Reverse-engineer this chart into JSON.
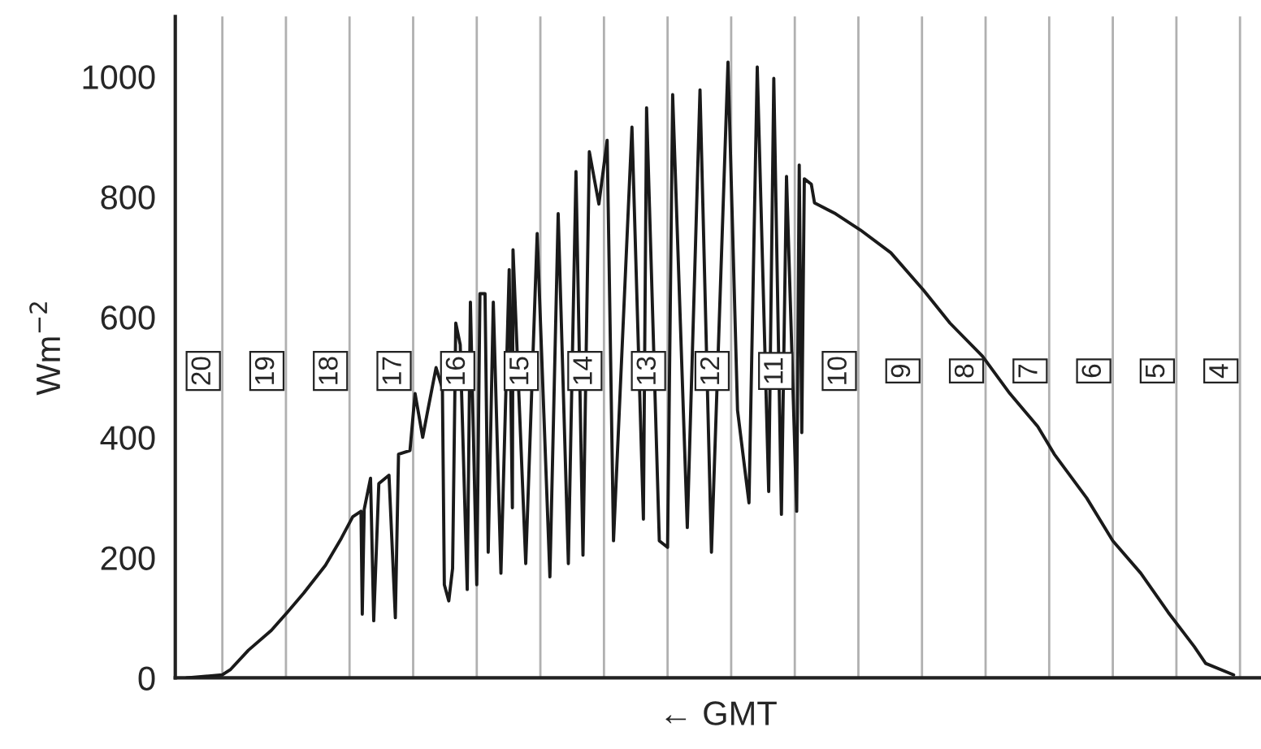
{
  "chart_data": {
    "type": "line",
    "xlabel": "← GMT",
    "ylabel": "Wm$^{−2}$",
    "xlim": [
      20.74,
      3.67
    ],
    "ylim": [
      0,
      1100
    ],
    "yticks": [
      0,
      200,
      400,
      600,
      800,
      1000
    ],
    "xticks": [
      {
        "value": 20.3,
        "label": "20"
      },
      {
        "value": 19.3,
        "label": "19"
      },
      {
        "value": 18.3,
        "label": "18"
      },
      {
        "value": 17.3,
        "label": "17"
      },
      {
        "value": 16.3,
        "label": "16"
      },
      {
        "value": 15.3,
        "label": "15"
      },
      {
        "value": 14.3,
        "label": "14"
      },
      {
        "value": 13.3,
        "label": "13"
      },
      {
        "value": 12.3,
        "label": "12"
      },
      {
        "value": 11.3,
        "label": "11"
      },
      {
        "value": 10.3,
        "label": "10"
      },
      {
        "value": 9.3,
        "label": "9"
      },
      {
        "value": 8.3,
        "label": "8"
      },
      {
        "value": 7.3,
        "label": "7"
      },
      {
        "value": 6.3,
        "label": "6"
      },
      {
        "value": 5.3,
        "label": "5"
      },
      {
        "value": 4.3,
        "label": "4"
      }
    ],
    "legend": false,
    "marker": "none",
    "line_style": "solid",
    "ref_lines": [
      {
        "axis": "x",
        "value": 20,
        "color": "#b0b0b0"
      },
      {
        "axis": "x",
        "value": 19,
        "color": "#b0b0b0"
      },
      {
        "axis": "x",
        "value": 18,
        "color": "#b0b0b0"
      },
      {
        "axis": "x",
        "value": 17,
        "color": "#b0b0b0"
      },
      {
        "axis": "x",
        "value": 16,
        "color": "#b0b0b0"
      },
      {
        "axis": "x",
        "value": 15,
        "color": "#b0b0b0"
      },
      {
        "axis": "x",
        "value": 14,
        "color": "#b0b0b0"
      },
      {
        "axis": "x",
        "value": 13,
        "color": "#b0b0b0"
      },
      {
        "axis": "x",
        "value": 12,
        "color": "#b0b0b0"
      },
      {
        "axis": "x",
        "value": 11,
        "color": "#b0b0b0"
      },
      {
        "axis": "x",
        "value": 10,
        "color": "#b0b0b0"
      },
      {
        "axis": "x",
        "value": 9,
        "color": "#b0b0b0"
      },
      {
        "axis": "x",
        "value": 8,
        "color": "#b0b0b0"
      },
      {
        "axis": "x",
        "value": 7,
        "color": "#b0b0b0"
      },
      {
        "axis": "x",
        "value": 6,
        "color": "#b0b0b0"
      },
      {
        "axis": "x",
        "value": 5,
        "color": "#b0b0b0"
      },
      {
        "axis": "x",
        "value": 4,
        "color": "#b0b0b0"
      }
    ],
    "series": [
      {
        "color": "#1a1a1a",
        "x": [
          20.56,
          20.0,
          19.87,
          19.59,
          19.23,
          18.97,
          18.72,
          18.38,
          18.13,
          17.95,
          17.82,
          17.8,
          17.77,
          17.67,
          17.62,
          17.54,
          17.38,
          17.28,
          17.23,
          17.05,
          16.97,
          16.85,
          16.77,
          16.64,
          16.54,
          16.51,
          16.44,
          16.38,
          16.33,
          16.26,
          16.15,
          16.1,
          16.0,
          15.95,
          15.87,
          15.82,
          15.74,
          15.62,
          15.49,
          15.44,
          15.43,
          15.23,
          15.05,
          14.85,
          14.72,
          14.56,
          14.44,
          14.33,
          14.23,
          14.08,
          13.95,
          13.85,
          13.56,
          13.38,
          13.33,
          13.13,
          13.0,
          12.92,
          12.69,
          12.49,
          12.31,
          12.05,
          11.9,
          11.72,
          11.59,
          11.41,
          11.33,
          11.21,
          11.13,
          10.97,
          10.93,
          10.89,
          10.85,
          10.74,
          10.69,
          10.36,
          9.97,
          9.49,
          8.97,
          8.56,
          8.05,
          7.62,
          7.18,
          6.92,
          6.41,
          6.0,
          5.56,
          5.13,
          4.72,
          4.54,
          4.1
        ],
        "values": [
          0,
          5,
          14,
          46,
          79,
          110,
          141,
          187,
          232,
          268,
          277,
          106,
          280,
          332,
          95,
          323,
          337,
          100,
          372,
          378,
          473,
          400,
          445,
          516,
          481,
          155,
          128,
          182,
          590,
          554,
          147,
          625,
          155,
          639,
          639,
          209,
          625,
          174,
          679,
          283,
          712,
          190,
          739,
          168,
          772,
          190,
          842,
          204,
          875,
          788,
          894,
          228,
          916,
          264,
          948,
          228,
          217,
          970,
          250,
          978,
          209,
          1024,
          445,
          291,
          1016,
          310,
          997,
          272,
          834,
          277,
          853,
          408,
          830,
          821,
          790,
          772,
          745,
          707,
          644,
          590,
          535,
          473,
          418,
          372,
          299,
          228,
          174,
          109,
          52,
          24,
          5
        ]
      }
    ]
  }
}
